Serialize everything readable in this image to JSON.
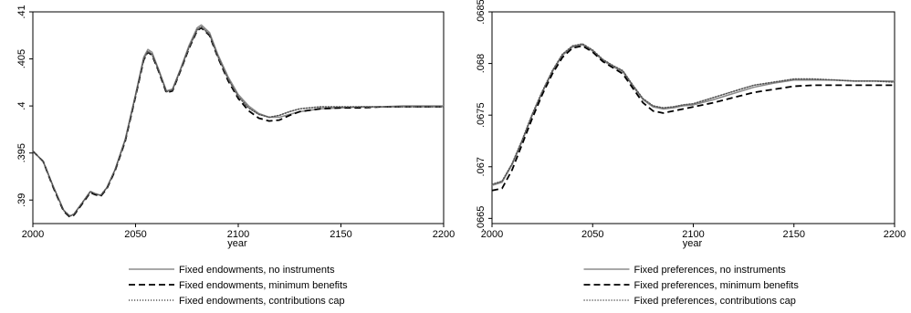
{
  "chart_data": [
    {
      "type": "line",
      "xlabel": "year",
      "ylabel": "",
      "xlim": [
        2000,
        2200
      ],
      "ylim": [
        0.3875,
        0.41
      ],
      "x_ticks": [
        "2000",
        "2050",
        "2100",
        "2150",
        "2200"
      ],
      "y_ticks": [
        ".39",
        ".395",
        ".4",
        ".405",
        ".41"
      ],
      "legend_position": "bottom",
      "series": [
        {
          "name": "Fixed endowments, no instruments",
          "style": "solid",
          "color": "#8c8c8c",
          "x": [
            2000,
            2005,
            2010,
            2015,
            2018,
            2020,
            2025,
            2028,
            2030,
            2033,
            2036,
            2040,
            2045,
            2050,
            2054,
            2056,
            2058,
            2061,
            2065,
            2068,
            2072,
            2076,
            2080,
            2082,
            2086,
            2090,
            2095,
            2100,
            2105,
            2110,
            2115,
            2120,
            2125,
            2130,
            2140,
            2150,
            2160,
            2170,
            2180,
            2190,
            2200
          ],
          "y": [
            0.3952,
            0.3941,
            0.3914,
            0.3889,
            0.3883,
            0.3885,
            0.39,
            0.3909,
            0.3907,
            0.3905,
            0.3913,
            0.3932,
            0.3965,
            0.4012,
            0.4052,
            0.406,
            0.4057,
            0.404,
            0.4016,
            0.4018,
            0.404,
            0.4064,
            0.4083,
            0.4086,
            0.4078,
            0.4055,
            0.4031,
            0.4012,
            0.4,
            0.3992,
            0.3988,
            0.3988,
            0.3991,
            0.3994,
            0.3997,
            0.3998,
            0.3999,
            0.3999,
            0.4,
            0.4,
            0.4
          ]
        },
        {
          "name": "Fixed endowments, minimum benefits",
          "style": "dashed",
          "color": "#000000",
          "x": [
            2000,
            2005,
            2010,
            2015,
            2018,
            2020,
            2025,
            2028,
            2030,
            2033,
            2036,
            2040,
            2045,
            2050,
            2054,
            2056,
            2058,
            2061,
            2065,
            2068,
            2072,
            2076,
            2080,
            2082,
            2086,
            2090,
            2095,
            2100,
            2105,
            2110,
            2115,
            2120,
            2125,
            2130,
            2140,
            2150,
            2160,
            2170,
            2180,
            2190,
            2200
          ],
          "y": [
            0.3952,
            0.3941,
            0.3913,
            0.3888,
            0.3882,
            0.3884,
            0.3899,
            0.3908,
            0.3906,
            0.3904,
            0.3912,
            0.3931,
            0.3963,
            0.401,
            0.4049,
            0.4057,
            0.4054,
            0.4038,
            0.4014,
            0.4016,
            0.4038,
            0.4061,
            0.408,
            0.4083,
            0.4075,
            0.4052,
            0.4027,
            0.4008,
            0.3995,
            0.3987,
            0.3984,
            0.3985,
            0.399,
            0.3994,
            0.3997,
            0.3998,
            0.3998,
            0.3999,
            0.3999,
            0.3999,
            0.3999
          ]
        },
        {
          "name": "Fixed endowments, contributions cap",
          "style": "dotted",
          "color": "#555555",
          "x": [
            2000,
            2005,
            2010,
            2015,
            2018,
            2020,
            2025,
            2028,
            2030,
            2033,
            2036,
            2040,
            2045,
            2050,
            2054,
            2056,
            2058,
            2061,
            2065,
            2068,
            2072,
            2076,
            2080,
            2082,
            2086,
            2090,
            2095,
            2100,
            2105,
            2110,
            2115,
            2120,
            2125,
            2130,
            2140,
            2150,
            2160,
            2170,
            2180,
            2190,
            2200
          ],
          "y": [
            0.3952,
            0.3941,
            0.3914,
            0.3889,
            0.3883,
            0.3885,
            0.39,
            0.3909,
            0.3907,
            0.3905,
            0.3913,
            0.3932,
            0.3964,
            0.4011,
            0.405,
            0.4058,
            0.4055,
            0.4039,
            0.4015,
            0.4017,
            0.4039,
            0.4062,
            0.4081,
            0.4084,
            0.4076,
            0.4053,
            0.4029,
            0.401,
            0.3998,
            0.3991,
            0.3988,
            0.399,
            0.3994,
            0.3997,
            0.3999,
            0.3999,
            0.3999,
            0.3999,
            0.3999,
            0.3999,
            0.3999
          ]
        }
      ]
    },
    {
      "type": "line",
      "xlabel": "year",
      "ylabel": "",
      "xlim": [
        2000,
        2200
      ],
      "ylim": [
        0.06645,
        0.0685
      ],
      "x_ticks": [
        "2000",
        "2050",
        "2100",
        "2150",
        "2200"
      ],
      "y_ticks": [
        ".0665",
        ".067",
        ".0675",
        ".068",
        ".0685"
      ],
      "legend_position": "bottom",
      "series": [
        {
          "name": "Fixed preferences, no instruments",
          "style": "solid",
          "color": "#8c8c8c",
          "x": [
            2000,
            2005,
            2010,
            2015,
            2020,
            2025,
            2030,
            2035,
            2040,
            2045,
            2050,
            2055,
            2060,
            2065,
            2070,
            2075,
            2080,
            2085,
            2090,
            2095,
            2100,
            2110,
            2120,
            2130,
            2140,
            2150,
            2160,
            2170,
            2180,
            2190,
            2200
          ],
          "y": [
            0.06682,
            0.06685,
            0.06702,
            0.06725,
            0.0675,
            0.06772,
            0.06792,
            0.06808,
            0.06816,
            0.06818,
            0.06812,
            0.06803,
            0.06797,
            0.06792,
            0.06778,
            0.06765,
            0.06758,
            0.06756,
            0.06757,
            0.06759,
            0.0676,
            0.06765,
            0.06771,
            0.06777,
            0.06781,
            0.06784,
            0.06784,
            0.06784,
            0.06783,
            0.06783,
            0.06783
          ]
        },
        {
          "name": "Fixed preferences, minimum benefits",
          "style": "dashed",
          "color": "#000000",
          "x": [
            2000,
            2005,
            2010,
            2015,
            2020,
            2025,
            2030,
            2035,
            2040,
            2045,
            2050,
            2055,
            2060,
            2065,
            2070,
            2075,
            2080,
            2085,
            2090,
            2095,
            2100,
            2110,
            2120,
            2130,
            2140,
            2150,
            2160,
            2170,
            2180,
            2190,
            2200
          ],
          "y": [
            0.06677,
            0.06679,
            0.06697,
            0.06722,
            0.06747,
            0.0677,
            0.0679,
            0.06806,
            0.06815,
            0.06817,
            0.06811,
            0.06802,
            0.06796,
            0.0679,
            0.06776,
            0.06762,
            0.06754,
            0.06752,
            0.06754,
            0.06756,
            0.06758,
            0.06762,
            0.06767,
            0.06772,
            0.06775,
            0.06778,
            0.06779,
            0.06779,
            0.06779,
            0.06779,
            0.06779
          ]
        },
        {
          "name": "Fixed preferences, contributions cap",
          "style": "dotted",
          "color": "#555555",
          "x": [
            2000,
            2005,
            2010,
            2015,
            2020,
            2025,
            2030,
            2035,
            2040,
            2045,
            2050,
            2055,
            2060,
            2065,
            2070,
            2075,
            2080,
            2085,
            2090,
            2095,
            2100,
            2110,
            2120,
            2130,
            2140,
            2150,
            2160,
            2170,
            2180,
            2190,
            2200
          ],
          "y": [
            0.06683,
            0.06686,
            0.06703,
            0.06726,
            0.06751,
            0.06773,
            0.06793,
            0.06809,
            0.06817,
            0.06819,
            0.06813,
            0.06804,
            0.06798,
            0.06793,
            0.06779,
            0.06766,
            0.06759,
            0.06757,
            0.06758,
            0.0676,
            0.06761,
            0.06767,
            0.06773,
            0.06779,
            0.06782,
            0.06785,
            0.06785,
            0.06784,
            0.06783,
            0.06783,
            0.06782
          ]
        }
      ]
    }
  ]
}
